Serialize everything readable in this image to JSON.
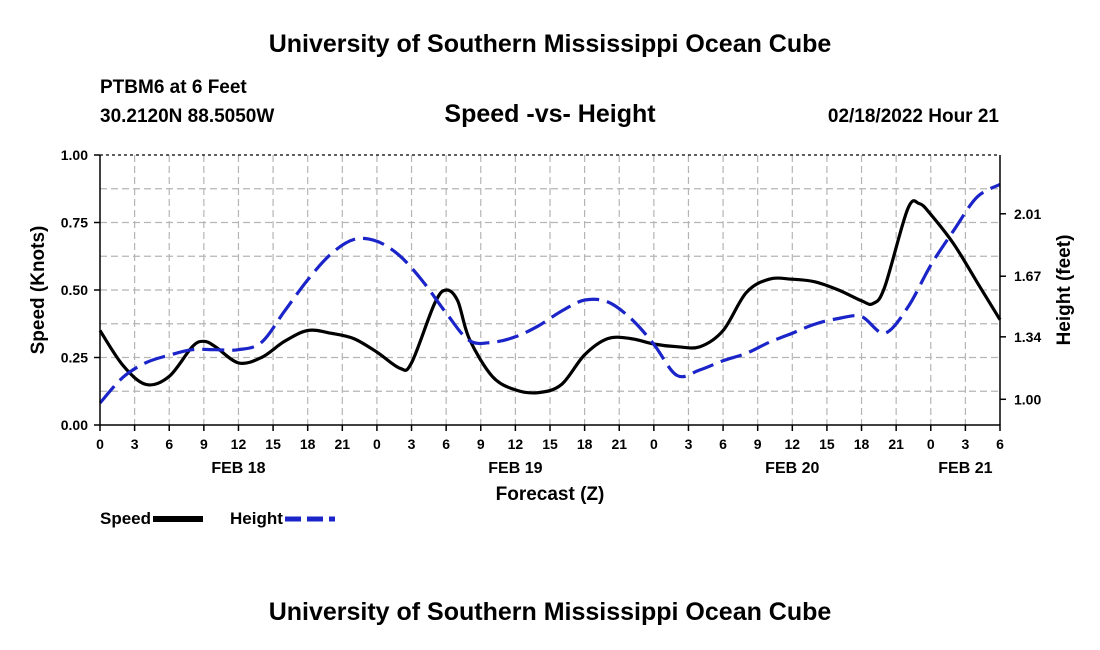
{
  "header": {
    "title": "University of Southern Mississippi Ocean Cube",
    "station": "PTBM6 at 6 Feet",
    "coords": "30.2120N  88.5050W",
    "subtitle": "Speed -vs- Height",
    "datetime": "02/18/2022 Hour 21"
  },
  "footer": {
    "title": "University of Southern Mississippi Ocean Cube"
  },
  "chart_data": {
    "type": "line",
    "title": "Speed -vs- Height",
    "xlabel": "Forecast (Z)",
    "ylabel": "Speed (Knots)",
    "y2label": "Height (feet)",
    "ylim": [
      0,
      1
    ],
    "y2lim": [
      0.86,
      2.33
    ],
    "yticks": [
      "0.00",
      "0.25",
      "0.50",
      "0.75",
      "1.00"
    ],
    "y2ticks": [
      "1.00",
      "1.34",
      "1.67",
      "2.01"
    ],
    "y2tick_values": [
      1.0,
      1.34,
      1.67,
      2.01
    ],
    "xlim": [
      0,
      78
    ],
    "x_unit": "hours from 00Z FEB 18",
    "xticks": [
      "0",
      "3",
      "6",
      "9",
      "12",
      "15",
      "18",
      "21",
      "0",
      "3",
      "6",
      "9",
      "12",
      "15",
      "18",
      "21",
      "0",
      "3",
      "6",
      "9",
      "12",
      "15",
      "18",
      "21",
      "0",
      "3",
      "6"
    ],
    "date_labels": [
      {
        "label": "FEB 18",
        "x": 12
      },
      {
        "label": "FEB 19",
        "x": 36
      },
      {
        "label": "FEB 20",
        "x": 60
      },
      {
        "label": "FEB 21",
        "x": 75
      }
    ],
    "grid": true,
    "legend": "bottom-left",
    "series": [
      {
        "name": "Speed",
        "color": "#000000",
        "style": "solid",
        "axis": "left",
        "x": [
          0,
          2,
          4,
          6,
          8,
          9,
          10,
          12,
          14,
          16,
          18,
          20,
          22,
          24,
          26,
          27,
          29,
          30,
          31,
          32,
          34,
          36,
          38,
          40,
          42,
          44,
          46,
          48,
          50,
          52,
          54,
          56,
          58,
          60,
          62,
          64,
          66,
          67,
          68,
          70,
          71,
          72,
          74,
          76,
          78
        ],
        "values": [
          0.35,
          0.22,
          0.15,
          0.18,
          0.29,
          0.31,
          0.29,
          0.23,
          0.25,
          0.31,
          0.35,
          0.34,
          0.32,
          0.27,
          0.21,
          0.23,
          0.45,
          0.5,
          0.46,
          0.32,
          0.18,
          0.13,
          0.12,
          0.15,
          0.26,
          0.32,
          0.32,
          0.3,
          0.29,
          0.29,
          0.35,
          0.49,
          0.54,
          0.54,
          0.53,
          0.5,
          0.46,
          0.45,
          0.51,
          0.8,
          0.82,
          0.78,
          0.67,
          0.53,
          0.39
        ]
      },
      {
        "name": "Height",
        "color": "#1a24c8",
        "style": "dashed",
        "axis": "right",
        "x": [
          0,
          2,
          4,
          6,
          8,
          10,
          12,
          14,
          16,
          18,
          20,
          22,
          24,
          26,
          28,
          30,
          32,
          34,
          36,
          38,
          40,
          42,
          44,
          46,
          48,
          50,
          52,
          54,
          56,
          58,
          60,
          62,
          64,
          66,
          68,
          70,
          72,
          74,
          76,
          78
        ],
        "values": [
          0.98,
          1.12,
          1.2,
          1.24,
          1.27,
          1.27,
          1.27,
          1.31,
          1.48,
          1.65,
          1.79,
          1.87,
          1.86,
          1.78,
          1.64,
          1.47,
          1.32,
          1.31,
          1.34,
          1.4,
          1.48,
          1.54,
          1.53,
          1.44,
          1.3,
          1.13,
          1.16,
          1.21,
          1.25,
          1.31,
          1.36,
          1.41,
          1.44,
          1.45,
          1.36,
          1.5,
          1.73,
          1.92,
          2.1,
          2.17
        ]
      }
    ]
  }
}
